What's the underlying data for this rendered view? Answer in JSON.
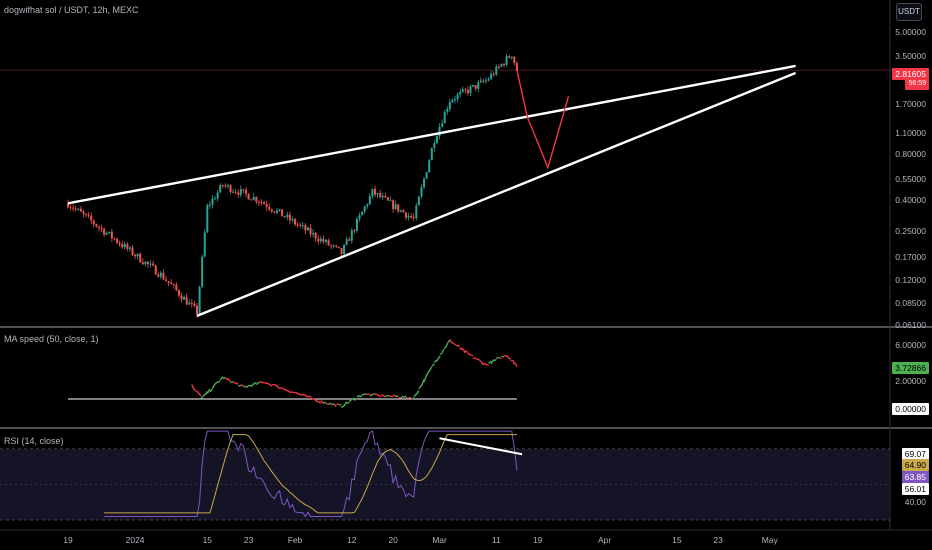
{
  "header": {
    "symbol_title": "dogwifhat sol / USDT, 12h, MEXC",
    "unit_button": "USDT"
  },
  "colors": {
    "up": "#26a69a",
    "down": "#ef5350",
    "ma_up": "#4caf50",
    "ma_down": "#f23645",
    "rsi_line": "#7e57c2",
    "rsi_ma": "#c9a94a",
    "price_tag": "#f23645"
  },
  "chart_data": [
    {
      "type": "candlestick",
      "title": "dogwifhat sol / USDT, 12h, MEXC",
      "y_scale": "log",
      "y_ticks": [
        "5.00000",
        "3.50000",
        "1.70000",
        "1.10000",
        "0.80000",
        "0.55000",
        "0.40000",
        "0.25000",
        "0.17000",
        "0.12000",
        "0.08500",
        "0.06100"
      ],
      "x_ticks": [
        "19",
        "2024",
        "15",
        "23",
        "Feb",
        "12",
        "20",
        "Mar",
        "11",
        "19",
        "Apr",
        "15",
        "23",
        "May"
      ],
      "last_price": "2.81605",
      "countdown": "56:59",
      "key_points": [
        {
          "date": "Dec 19",
          "price": 0.38
        },
        {
          "date": "Jan 6",
          "price": 0.13
        },
        {
          "date": "Jan 13",
          "price": 0.074
        },
        {
          "date": "Jan 15",
          "price": 0.36
        },
        {
          "date": "Jan 18",
          "price": 0.5
        },
        {
          "date": "Jan 25",
          "price": 0.4
        },
        {
          "date": "Feb 10",
          "price": 0.18
        },
        {
          "date": "Feb 16",
          "price": 0.45
        },
        {
          "date": "Feb 24",
          "price": 0.3
        },
        {
          "date": "Feb 28",
          "price": 1.0
        },
        {
          "date": "Mar 2",
          "price": 1.8
        },
        {
          "date": "Mar 9",
          "price": 2.4
        },
        {
          "date": "Mar 14",
          "price": 3.6
        },
        {
          "date": "Mar 15",
          "price": 2.82
        }
      ],
      "projection": {
        "color": "red",
        "points": [
          {
            "date": "Mar 15",
            "price": 2.82
          },
          {
            "date": "Mar 17",
            "price": 1.4
          },
          {
            "date": "Mar 21",
            "price": 0.65
          },
          {
            "date": "Mar 25",
            "price": 1.9
          }
        ]
      },
      "trendlines": [
        {
          "name": "upper",
          "from": {
            "date": "Dec 19",
            "price": 0.38
          },
          "to": {
            "date": "May 8",
            "price": 3.0
          }
        },
        {
          "name": "lower",
          "from": {
            "date": "Jan 13",
            "price": 0.07
          },
          "to": {
            "date": "May 8",
            "price": 2.7
          }
        }
      ]
    },
    {
      "type": "line",
      "title": "MA speed (50, close, 1)",
      "y_ticks": [
        "6.00000",
        "2.00000"
      ],
      "current_value": "3.72866",
      "baseline_value": "0.00000",
      "series": [
        {
          "values": [
            {
              "date": "Jan 12",
              "v": 1.5
            },
            {
              "date": "Jan 14",
              "v": 0.1
            },
            {
              "date": "Jan 18",
              "v": 2.4
            },
            {
              "date": "Jan 22",
              "v": 1.3
            },
            {
              "date": "Jan 26",
              "v": 1.9
            },
            {
              "date": "Feb 1",
              "v": 0.7
            },
            {
              "date": "Feb 6",
              "v": -0.3
            },
            {
              "date": "Feb 10",
              "v": -0.8
            },
            {
              "date": "Feb 14",
              "v": 0.5
            },
            {
              "date": "Feb 20",
              "v": 0.3
            },
            {
              "date": "Feb 24",
              "v": 0.1
            },
            {
              "date": "Feb 28",
              "v": 4.0
            },
            {
              "date": "Mar 2",
              "v": 6.5
            },
            {
              "date": "Mar 5",
              "v": 5.2
            },
            {
              "date": "Mar 9",
              "v": 3.8
            },
            {
              "date": "Mar 13",
              "v": 4.9
            },
            {
              "date": "Mar 15",
              "v": 3.73
            }
          ]
        }
      ]
    },
    {
      "type": "line",
      "title": "RSI (14, close)",
      "y_ticks": [
        "69.07",
        "64.90",
        "63.85",
        "56.01",
        "40.00"
      ],
      "band": {
        "upper": 70,
        "lower": 30
      }
    }
  ]
}
